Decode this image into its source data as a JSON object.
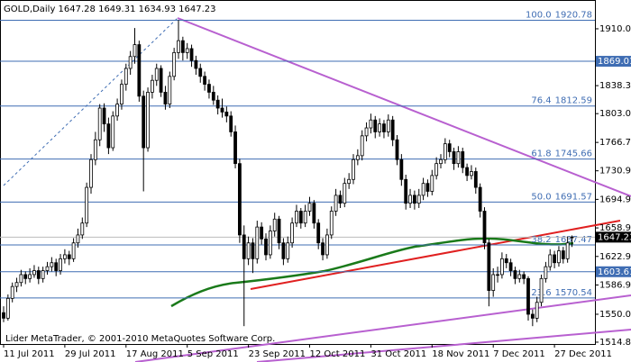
{
  "chart_data": {
    "type": "candlestick",
    "title": "GOLD,Daily  1647.28 1649.31 1634.93 1647.23",
    "footer": "Lider MetaTrader, © 2001-2010 MetaQuotes Software Corp.",
    "ylim": [
      1512.5,
      1946.3
    ],
    "yticks": [
      {
        "value": 1910,
        "label": "1910.00"
      },
      {
        "value": 1838.3,
        "label": "1838.30"
      },
      {
        "value": 1803,
        "label": "1803.00"
      },
      {
        "value": 1766.7,
        "label": "1766.70"
      },
      {
        "value": 1730.9,
        "label": "1730.90"
      },
      {
        "value": 1694.9,
        "label": "1694.90"
      },
      {
        "value": 1658.9,
        "label": "1658.90"
      },
      {
        "value": 1622.9,
        "label": "1622.90"
      },
      {
        "value": 1586.9,
        "label": "1586.90"
      },
      {
        "value": 1550,
        "label": "1550.00"
      },
      {
        "value": 1514.8,
        "label": "1514.80"
      }
    ],
    "categories": [
      "11 Jul 2011",
      null,
      null,
      null,
      null,
      null,
      null,
      null,
      null,
      null,
      null,
      null,
      null,
      null,
      "29 Jul 2011",
      null,
      null,
      null,
      null,
      null,
      null,
      null,
      null,
      null,
      null,
      null,
      null,
      null,
      "17 Aug 2011",
      null,
      null,
      null,
      null,
      null,
      null,
      null,
      null,
      null,
      null,
      null,
      null,
      null,
      "5 Sep 2011",
      null,
      null,
      null,
      null,
      null,
      null,
      null,
      null,
      null,
      null,
      null,
      null,
      null,
      "23 Sep 2011",
      null,
      null,
      null,
      null,
      null,
      null,
      null,
      null,
      null,
      null,
      null,
      null,
      null,
      "12 Oct 2011",
      null,
      null,
      null,
      null,
      null,
      null,
      null,
      null,
      null,
      null,
      null,
      null,
      null,
      "31 Oct 2011",
      null,
      null,
      null,
      null,
      null,
      null,
      null,
      null,
      null,
      null,
      null,
      null,
      null,
      "18 Nov 2011",
      null,
      null,
      null,
      null,
      null,
      null,
      null,
      null,
      null,
      null,
      null,
      null,
      null,
      "7 Dec 2011",
      null,
      null,
      null,
      null,
      null,
      null,
      null,
      null,
      null,
      null,
      null,
      null,
      null,
      "27 Dec 2011",
      null,
      null,
      null,
      null
    ],
    "ohlc": [
      [
        1552,
        1560,
        1540,
        1545
      ],
      [
        1545,
        1575,
        1542,
        1570
      ],
      [
        1570,
        1590,
        1565,
        1585
      ],
      [
        1585,
        1596,
        1578,
        1590
      ],
      [
        1590,
        1606,
        1585,
        1600
      ],
      [
        1600,
        1604,
        1588,
        1595
      ],
      [
        1595,
        1608,
        1590,
        1600
      ],
      [
        1600,
        1612,
        1596,
        1605
      ],
      [
        1605,
        1610,
        1588,
        1595
      ],
      [
        1595,
        1610,
        1590,
        1605
      ],
      [
        1605,
        1616,
        1600,
        1610
      ],
      [
        1610,
        1622,
        1604,
        1615
      ],
      [
        1615,
        1620,
        1598,
        1605
      ],
      [
        1605,
        1626,
        1600,
        1620
      ],
      [
        1620,
        1632,
        1614,
        1625
      ],
      [
        1625,
        1630,
        1612,
        1620
      ],
      [
        1620,
        1646,
        1616,
        1640
      ],
      [
        1640,
        1658,
        1634,
        1650
      ],
      [
        1650,
        1672,
        1645,
        1665
      ],
      [
        1665,
        1716,
        1660,
        1710
      ],
      [
        1710,
        1752,
        1702,
        1745
      ],
      [
        1745,
        1780,
        1738,
        1770
      ],
      [
        1770,
        1815,
        1762,
        1810
      ],
      [
        1810,
        1816,
        1780,
        1790
      ],
      [
        1790,
        1798,
        1752,
        1760
      ],
      [
        1760,
        1806,
        1756,
        1800
      ],
      [
        1800,
        1822,
        1794,
        1815
      ],
      [
        1815,
        1846,
        1808,
        1840
      ],
      [
        1840,
        1866,
        1832,
        1860
      ],
      [
        1860,
        1882,
        1852,
        1875
      ],
      [
        1875,
        1911,
        1866,
        1890
      ],
      [
        1890,
        1895,
        1818,
        1825
      ],
      [
        1825,
        1832,
        1705,
        1760
      ],
      [
        1760,
        1836,
        1755,
        1830
      ],
      [
        1830,
        1852,
        1822,
        1845
      ],
      [
        1845,
        1866,
        1838,
        1860
      ],
      [
        1860,
        1864,
        1824,
        1830
      ],
      [
        1830,
        1838,
        1808,
        1815
      ],
      [
        1815,
        1856,
        1810,
        1850
      ],
      [
        1850,
        1886,
        1845,
        1880
      ],
      [
        1880,
        1921,
        1872,
        1895
      ],
      [
        1895,
        1900,
        1870,
        1880
      ],
      [
        1880,
        1892,
        1872,
        1885
      ],
      [
        1885,
        1890,
        1862,
        1870
      ],
      [
        1870,
        1876,
        1852,
        1860
      ],
      [
        1860,
        1866,
        1842,
        1850
      ],
      [
        1850,
        1856,
        1832,
        1840
      ],
      [
        1840,
        1846,
        1822,
        1830
      ],
      [
        1830,
        1838,
        1814,
        1820
      ],
      [
        1820,
        1826,
        1802,
        1810
      ],
      [
        1810,
        1822,
        1798,
        1805
      ],
      [
        1805,
        1812,
        1792,
        1800
      ],
      [
        1800,
        1806,
        1774,
        1780
      ],
      [
        1780,
        1788,
        1734,
        1740
      ],
      [
        1740,
        1746,
        1640,
        1650
      ],
      [
        1650,
        1662,
        1535,
        1620
      ],
      [
        1620,
        1648,
        1612,
        1640
      ],
      [
        1640,
        1646,
        1602,
        1620
      ],
      [
        1620,
        1668,
        1614,
        1660
      ],
      [
        1660,
        1666,
        1638,
        1645
      ],
      [
        1645,
        1652,
        1618,
        1625
      ],
      [
        1625,
        1662,
        1620,
        1655
      ],
      [
        1655,
        1678,
        1648,
        1670
      ],
      [
        1670,
        1674,
        1632,
        1640
      ],
      [
        1640,
        1646,
        1612,
        1620
      ],
      [
        1620,
        1648,
        1615,
        1640
      ],
      [
        1640,
        1672,
        1634,
        1665
      ],
      [
        1665,
        1688,
        1660,
        1680
      ],
      [
        1680,
        1684,
        1658,
        1665
      ],
      [
        1665,
        1688,
        1660,
        1680
      ],
      [
        1680,
        1698,
        1674,
        1690
      ],
      [
        1690,
        1694,
        1658,
        1665
      ],
      [
        1665,
        1670,
        1632,
        1640
      ],
      [
        1640,
        1646,
        1618,
        1625
      ],
      [
        1625,
        1658,
        1620,
        1650
      ],
      [
        1650,
        1686,
        1645,
        1680
      ],
      [
        1680,
        1708,
        1674,
        1700
      ],
      [
        1700,
        1706,
        1684,
        1690
      ],
      [
        1690,
        1722,
        1685,
        1715
      ],
      [
        1715,
        1728,
        1708,
        1720
      ],
      [
        1720,
        1752,
        1714,
        1745
      ],
      [
        1745,
        1758,
        1738,
        1750
      ],
      [
        1750,
        1782,
        1744,
        1775
      ],
      [
        1775,
        1792,
        1768,
        1785
      ],
      [
        1785,
        1803,
        1778,
        1795
      ],
      [
        1795,
        1800,
        1772,
        1780
      ],
      [
        1780,
        1797,
        1774,
        1790
      ],
      [
        1790,
        1795,
        1772,
        1780
      ],
      [
        1780,
        1802,
        1774,
        1795
      ],
      [
        1795,
        1800,
        1762,
        1770
      ],
      [
        1770,
        1776,
        1738,
        1745
      ],
      [
        1745,
        1752,
        1712,
        1720
      ],
      [
        1720,
        1726,
        1682,
        1690
      ],
      [
        1690,
        1708,
        1684,
        1700
      ],
      [
        1700,
        1706,
        1682,
        1690
      ],
      [
        1690,
        1708,
        1684,
        1700
      ],
      [
        1700,
        1722,
        1694,
        1715
      ],
      [
        1715,
        1720,
        1698,
        1705
      ],
      [
        1705,
        1732,
        1700,
        1725
      ],
      [
        1725,
        1748,
        1720,
        1740
      ],
      [
        1740,
        1752,
        1734,
        1745
      ],
      [
        1745,
        1772,
        1740,
        1765
      ],
      [
        1765,
        1770,
        1748,
        1755
      ],
      [
        1755,
        1760,
        1732,
        1740
      ],
      [
        1740,
        1762,
        1735,
        1755
      ],
      [
        1755,
        1760,
        1728,
        1735
      ],
      [
        1735,
        1740,
        1718,
        1725
      ],
      [
        1725,
        1738,
        1720,
        1730
      ],
      [
        1730,
        1735,
        1702,
        1710
      ],
      [
        1710,
        1715,
        1672,
        1680
      ],
      [
        1680,
        1685,
        1632,
        1640
      ],
      [
        1640,
        1645,
        1560,
        1580
      ],
      [
        1580,
        1608,
        1572,
        1600
      ],
      [
        1600,
        1610,
        1590,
        1600
      ],
      [
        1600,
        1628,
        1595,
        1620
      ],
      [
        1620,
        1626,
        1608,
        1615
      ],
      [
        1615,
        1620,
        1598,
        1605
      ],
      [
        1605,
        1610,
        1588,
        1595
      ],
      [
        1595,
        1606,
        1590,
        1600
      ],
      [
        1600,
        1604,
        1588,
        1595
      ],
      [
        1595,
        1598,
        1542,
        1550
      ],
      [
        1550,
        1556,
        1535,
        1545
      ],
      [
        1545,
        1572,
        1540,
        1565
      ],
      [
        1565,
        1600,
        1560,
        1595
      ],
      [
        1595,
        1616,
        1590,
        1610
      ],
      [
        1610,
        1632,
        1605,
        1625
      ],
      [
        1625,
        1630,
        1608,
        1615
      ],
      [
        1615,
        1636,
        1610,
        1630
      ],
      [
        1630,
        1635,
        1614,
        1620
      ],
      [
        1620,
        1648,
        1615,
        1640
      ],
      [
        1647.28,
        1649.31,
        1634.93,
        1647.23
      ]
    ],
    "fib_levels": [
      {
        "label": "100.0",
        "price": 1920.78
      },
      {
        "label": "76.4",
        "price": 1812.59
      },
      {
        "label": "61.8",
        "price": 1745.66
      },
      {
        "label": "50.0",
        "price": 1691.57
      },
      {
        "label": "38.2",
        "price": 1637.47
      },
      {
        "label": "23.6",
        "price": 1570.54
      }
    ],
    "price_labels": [
      {
        "price": 1869.01,
        "color": "#3f6db3"
      },
      {
        "price": 1647.23,
        "color": "#000000"
      },
      {
        "price": 1603.61,
        "color": "#3f6db3"
      }
    ]
  }
}
